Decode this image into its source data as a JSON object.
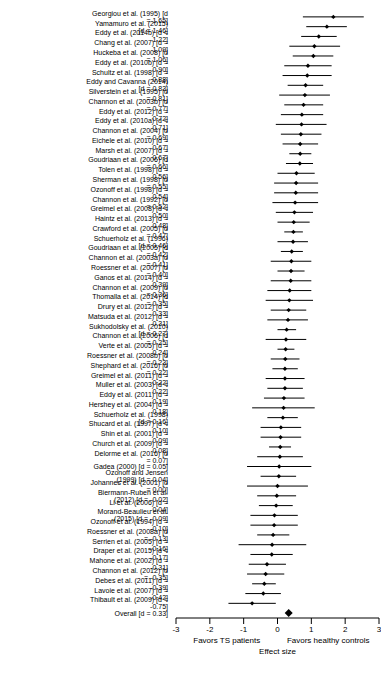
{
  "chart_data": {
    "type": "forest",
    "xlabel": "Effect size",
    "annotations": [
      "Favors TS patients",
      "Favors healthy controls"
    ],
    "categories": [
      "Georgiou et al. (1995) [d = 1.65]",
      "Yamamuro et al. (2015) [d = 1.46]",
      "Eddy et al. (2014b) [d = 1.22]",
      "Chang et al. (2007) [d = 1.09]",
      "Huckeba et al. (2008) [d = 1.06]",
      "Eddy et al. (2010b) [d = 0.90]",
      "Schultz et al. (1998) [d = 0.88]",
      "Eddy and Cavanna (2014) [d = 0.83]",
      "Silverstein et al. (1995) [d = 0.81]",
      "Channon et al. (2003b) [d = 0.77]",
      "Eddy et al. (2012) [d = 0.72]",
      "Eddy et al. (2010a) [d = 0.71]",
      "Channon et al. (2004) [d = 0.69]",
      "Eichele et al. (2010) [d = 0.67]",
      "Marsh et al. (2007) [d = 0.67]",
      "Goudriaan et al. (2006) [d = 0.66]",
      "Tolen et al. (1998) [d = 0.56]",
      "Sherman et al. (1998) [d = 0.55]",
      "Ozonoff et al. (1998) [d = 0.54]",
      "Channon et al. (1992) [d = 0.52]",
      "Greimel et al. (2008) [d = 0.50]",
      "Haintz et al. (2013) [d = 0.48]",
      "Crawford et al. (2005) [d = 0.47]",
      "Schuerholz et al. (1996) [d = 0.46]",
      "Goudriaan et al. (2005) [d = 0.42]",
      "Channon et al. (2003a) [d = 0.41]",
      "Roessner et al. (2007) [d = 0.40]",
      "Ganos et al. (2014) [d = 0.39]",
      "Channon et al. (2009) [d = 0.36]",
      "Thomalla et al. (2014) [d = 0.35]",
      "Drury et al. (2012) [d = 0.33]",
      "Matsuda et al. (2012) [d = 0.31]",
      "Sukhodolsky et al. (2010) [d = 0.27]",
      "Channon et al. (2006) [d = 0.25]",
      "Verte et al. (2005) [d = 0.24]",
      "Roessner et al. (2008b) [d = 0.23]",
      "Shephard et al. (2016) [d = 0.22]",
      "Greimel et al. (2011) [d = 0.22]",
      "Muller et al. (2003) [d = 0.22]",
      "Eddy et al. (2011) [d = 0.19]",
      "Hershey et al. (2004) [d = 0.18]",
      "Schuerholz et al. (1998) [d = 0.16]",
      "Shucard et al. (1997) [d = 0.10]",
      "Shin et al. (2001) [d = 0.09]",
      "Church et al. (2009) [d = 0.08]",
      "Delorme et al. (2016) [d = 0.07]",
      "Gadea (2000) [d = 0.05]",
      "Ozonoff and Jensen (1999) [d = 0.04]",
      "Johannes et al. (2001) [d = 0.00]",
      "Biermann-Ruben et al. (2012) [d = -0.02]",
      "Li et al. (2006) [d = -0.04]",
      "Morand-Beaulieu et al. (2015) [d = -0.09]",
      "Ozonoff et al. (1994) [d = -0.10]",
      "Roessner et al. (2008a) [d = -0.13]",
      "Serrien et al. (2005) [d = -0.16]",
      "Draper et al. (2015) [d = -0.17]",
      "Mahone et al. (2002) [d = -0.31]",
      "Channon et al. (2012) [d = -0.35]",
      "Debes et al. (2011) [d = -0.39]",
      "Lavoie et al. (2007) [d = -0.42]",
      "Thibault et al. (2009) [d = -0.75]",
      "Overall [d = 0.33]"
    ],
    "values": [
      1.65,
      1.46,
      1.22,
      1.09,
      1.06,
      0.9,
      0.88,
      0.83,
      0.81,
      0.77,
      0.72,
      0.71,
      0.69,
      0.67,
      0.67,
      0.66,
      0.56,
      0.55,
      0.54,
      0.52,
      0.5,
      0.48,
      0.47,
      0.46,
      0.42,
      0.41,
      0.4,
      0.39,
      0.36,
      0.35,
      0.33,
      0.31,
      0.27,
      0.25,
      0.24,
      0.23,
      0.22,
      0.22,
      0.22,
      0.19,
      0.18,
      0.16,
      0.1,
      0.09,
      0.08,
      0.07,
      0.05,
      0.04,
      0.0,
      -0.02,
      -0.04,
      -0.09,
      -0.1,
      -0.13,
      -0.16,
      -0.17,
      -0.31,
      -0.35,
      -0.39,
      -0.42,
      -0.75,
      0.33
    ],
    "ci_low": [
      0.75,
      0.85,
      0.7,
      0.35,
      0.45,
      0.2,
      0.15,
      0.3,
      0.05,
      0.2,
      0.1,
      -0.05,
      0.1,
      0.15,
      0.35,
      0.25,
      0.0,
      -0.1,
      -0.1,
      -0.15,
      -0.05,
      0.0,
      0.2,
      0.0,
      0.1,
      -0.2,
      0.0,
      -0.2,
      -0.3,
      -0.35,
      -0.2,
      -0.3,
      0.0,
      -0.35,
      0.0,
      -0.2,
      -0.15,
      -0.35,
      -0.3,
      -0.4,
      -0.75,
      -0.3,
      -0.5,
      -0.5,
      -0.25,
      -0.6,
      -0.9,
      -0.5,
      -0.9,
      -0.6,
      -0.55,
      -0.8,
      -0.8,
      -0.6,
      -1.15,
      -0.8,
      -0.85,
      -0.9,
      -0.75,
      -0.95,
      -1.45,
      0.25
    ],
    "ci_high": [
      2.55,
      2.05,
      1.75,
      1.85,
      1.65,
      1.6,
      1.6,
      1.35,
      1.55,
      1.35,
      1.35,
      1.45,
      1.3,
      1.2,
      1.0,
      1.05,
      1.1,
      1.2,
      1.2,
      1.2,
      1.05,
      0.95,
      0.75,
      0.9,
      0.75,
      1.0,
      0.8,
      1.0,
      1.0,
      1.05,
      0.85,
      0.9,
      0.55,
      0.85,
      0.5,
      0.65,
      0.6,
      0.8,
      0.75,
      0.8,
      1.1,
      0.6,
      0.7,
      0.7,
      0.4,
      0.75,
      1.0,
      0.55,
      0.9,
      0.55,
      0.45,
      0.6,
      0.6,
      0.35,
      0.85,
      0.45,
      0.25,
      0.2,
      -0.05,
      0.1,
      -0.05,
      0.41
    ],
    "color": "#000000",
    "marker": "diamond",
    "xlim": [
      -3,
      3
    ],
    "xticks": [
      -3,
      -2,
      -1,
      0,
      1,
      2,
      3
    ]
  }
}
